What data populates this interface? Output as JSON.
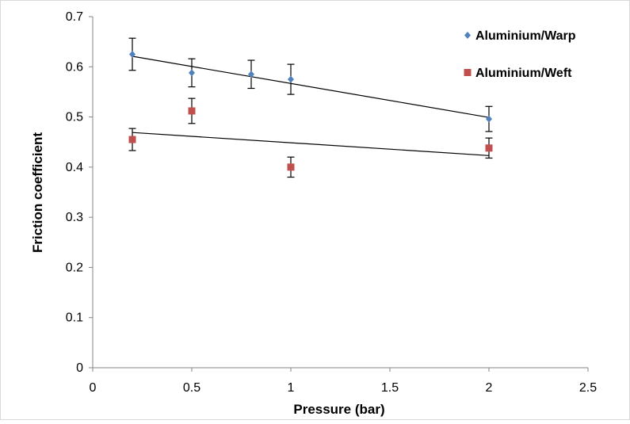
{
  "chart_data": {
    "type": "scatter",
    "title": "",
    "xlabel": "Pressure (bar)",
    "ylabel": "Friction coefficient",
    "xlim": [
      0,
      2.5
    ],
    "ylim": [
      0,
      0.7
    ],
    "x_ticks": [
      0,
      0.5,
      1,
      1.5,
      2,
      2.5
    ],
    "x_tick_labels": [
      "0",
      "0.5",
      "1",
      "1.5",
      "2",
      "2.5"
    ],
    "y_ticks": [
      0,
      0.1,
      0.2,
      0.3,
      0.4,
      0.5,
      0.6,
      0.7
    ],
    "y_tick_labels": [
      "0",
      "0.1",
      "0.2",
      "0.3",
      "0.4",
      "0.5",
      "0.6",
      "0.7"
    ],
    "grid": false,
    "legend_position": "top-right",
    "series": [
      {
        "name": "Aluminium/Warp",
        "marker": "diamond",
        "color": "#4F81BD",
        "x": [
          0.2,
          0.5,
          0.8,
          1,
          2
        ],
        "y": [
          0.625,
          0.588,
          0.585,
          0.575,
          0.496
        ],
        "error": [
          0.032,
          0.028,
          0.028,
          0.03,
          0.025
        ],
        "trendline": {
          "x": [
            0.2,
            2
          ],
          "y": [
            0.621,
            0.499
          ]
        }
      },
      {
        "name": "Aluminium/Weft",
        "marker": "square",
        "color": "#C0504D",
        "x": [
          0.2,
          0.5,
          1,
          2
        ],
        "y": [
          0.455,
          0.512,
          0.4,
          0.438
        ],
        "error": [
          0.022,
          0.025,
          0.02,
          0.02
        ],
        "trendline": {
          "x": [
            0.2,
            2
          ],
          "y": [
            0.469,
            0.423
          ]
        }
      }
    ]
  }
}
